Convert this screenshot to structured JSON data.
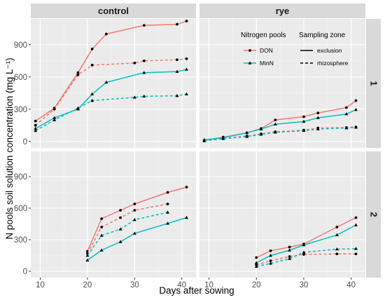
{
  "chart_data": {
    "type": "line",
    "xlabel": "Days after sowing",
    "ylabel": "N pools soil solution concentration (mg L⁻¹)",
    "xlim": [
      8,
      43
    ],
    "ylim": [
      -60,
      1140
    ],
    "x_ticks": [
      10,
      20,
      30,
      40
    ],
    "y_ticks": [
      0,
      300,
      600,
      900
    ],
    "grid": true,
    "facets": {
      "columns": [
        "control",
        "rye"
      ],
      "rows": [
        "1",
        "2"
      ]
    },
    "legend": {
      "placement": "inside top-right of rye / 1 panel",
      "color_title": "Nitrogen pools",
      "color_entries": [
        {
          "label": "DON",
          "color": "#F8766D",
          "marker": "circle"
        },
        {
          "label": "MinN",
          "color": "#00BFC4",
          "marker": "triangle"
        }
      ],
      "linetype_title": "Sampling zone",
      "linetype_entries": [
        {
          "label": "exclusion",
          "dash": "solid"
        },
        {
          "label": "rhizosphere",
          "dash": "dashed"
        }
      ]
    },
    "panels": [
      {
        "column": "control",
        "row": "1",
        "series": [
          {
            "pool": "DON",
            "zone": "exclusion",
            "x": [
              9,
              13,
              18,
              21,
              24,
              32,
              39,
              41
            ],
            "y": [
              190,
              310,
              640,
              860,
              1000,
              1080,
              1090,
              1120
            ]
          },
          {
            "pool": "DON",
            "zone": "rhizosphere",
            "x": [
              9,
              13,
              18,
              21,
              30,
              32,
              39,
              41
            ],
            "y": [
              150,
              300,
              620,
              710,
              730,
              750,
              760,
              770
            ]
          },
          {
            "pool": "MinN",
            "zone": "exclusion",
            "x": [
              9,
              13,
              18,
              21,
              24,
              32,
              39,
              41
            ],
            "y": [
              120,
              220,
              300,
              440,
              550,
              640,
              650,
              670
            ]
          },
          {
            "pool": "MinN",
            "zone": "rhizosphere",
            "x": [
              9,
              13,
              18,
              21,
              30,
              32,
              39,
              41
            ],
            "y": [
              100,
              200,
              310,
              380,
              410,
              420,
              425,
              440
            ]
          }
        ]
      },
      {
        "column": "rye",
        "row": "1",
        "series": [
          {
            "pool": "DON",
            "zone": "exclusion",
            "x": [
              9,
              13,
              18,
              21,
              24,
              30,
              33,
              39,
              41
            ],
            "y": [
              10,
              40,
              80,
              120,
              200,
              230,
              265,
              315,
              380
            ]
          },
          {
            "pool": "DON",
            "zone": "rhizosphere",
            "x": [
              9,
              13,
              18,
              21,
              24,
              30,
              33,
              39,
              41
            ],
            "y": [
              5,
              30,
              50,
              70,
              90,
              105,
              125,
              130,
              135
            ]
          },
          {
            "pool": "MinN",
            "zone": "exclusion",
            "x": [
              9,
              13,
              18,
              21,
              24,
              30,
              33,
              39,
              41
            ],
            "y": [
              15,
              35,
              80,
              115,
              160,
              185,
              220,
              255,
              295
            ]
          },
          {
            "pool": "MinN",
            "zone": "rhizosphere",
            "x": [
              9,
              13,
              18,
              21,
              24,
              30,
              33,
              39,
              41
            ],
            "y": [
              5,
              25,
              45,
              65,
              85,
              100,
              115,
              125,
              130
            ]
          }
        ]
      },
      {
        "column": "control",
        "row": "2",
        "series": [
          {
            "pool": "DON",
            "zone": "exclusion",
            "x": [
              20,
              23,
              27,
              30,
              37,
              41
            ],
            "y": [
              190,
              500,
              580,
              640,
              750,
              800
            ]
          },
          {
            "pool": "DON",
            "zone": "rhizosphere",
            "x": [
              20,
              23,
              27,
              30,
              37
            ],
            "y": [
              170,
              420,
              510,
              580,
              640
            ]
          },
          {
            "pool": "MinN",
            "zone": "exclusion",
            "x": [
              20,
              23,
              27,
              30,
              37,
              41
            ],
            "y": [
              105,
              200,
              280,
              360,
              455,
              510
            ]
          },
          {
            "pool": "MinN",
            "zone": "rhizosphere",
            "x": [
              20,
              23,
              27,
              30,
              37
            ],
            "y": [
              150,
              340,
              400,
              490,
              560
            ]
          }
        ]
      },
      {
        "column": "rye",
        "row": "2",
        "series": [
          {
            "pool": "DON",
            "zone": "exclusion",
            "x": [
              20,
              23,
              27,
              30,
              37,
              41
            ],
            "y": [
              130,
              195,
              230,
              260,
              420,
              510
            ]
          },
          {
            "pool": "DON",
            "zone": "rhizosphere",
            "x": [
              20,
              23,
              27,
              30,
              37,
              41
            ],
            "y": [
              60,
              100,
              140,
              160,
              165,
              165
            ]
          },
          {
            "pool": "MinN",
            "zone": "exclusion",
            "x": [
              20,
              23,
              27,
              30,
              37,
              41
            ],
            "y": [
              80,
              150,
              200,
              250,
              345,
              440
            ]
          },
          {
            "pool": "MinN",
            "zone": "rhizosphere",
            "x": [
              20,
              23,
              27,
              30,
              37,
              41
            ],
            "y": [
              45,
              75,
              120,
              180,
              210,
              215
            ]
          }
        ]
      }
    ]
  }
}
